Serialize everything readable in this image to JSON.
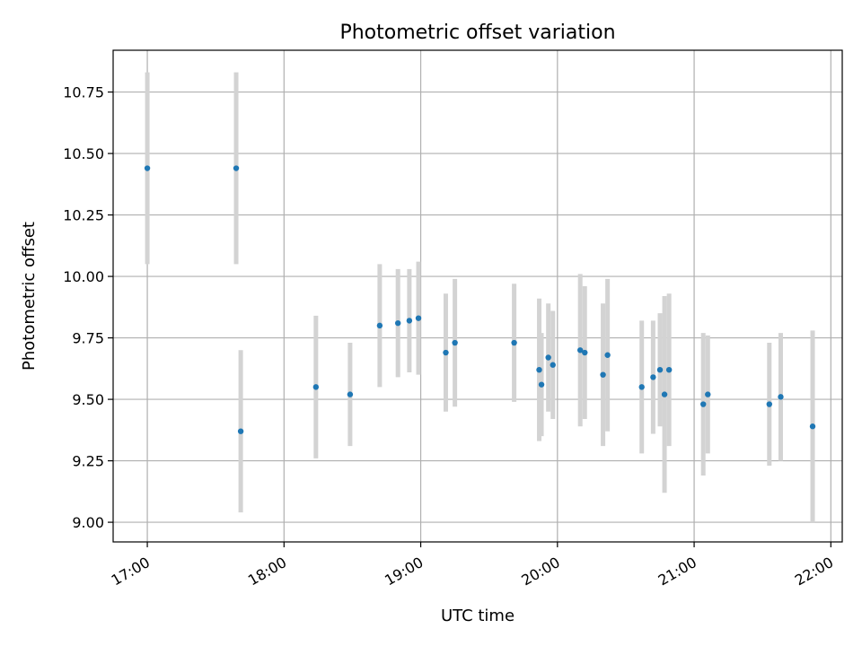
{
  "chart_data": {
    "type": "scatter",
    "title": "Photometric offset variation",
    "xlabel": "UTC time",
    "ylabel": "Photometric offset",
    "xlim": [
      "16:45",
      "22:05"
    ],
    "ylim": [
      8.92,
      10.92
    ],
    "x_ticks": [
      "17:00",
      "18:00",
      "19:00",
      "20:00",
      "21:00",
      "22:00"
    ],
    "y_ticks": [
      "9.00",
      "9.25",
      "9.50",
      "9.75",
      "10.00",
      "10.25",
      "10.50",
      "10.75"
    ],
    "grid": true,
    "point_color": "#1f77b4",
    "errorbar_color": "#d3d3d3",
    "points": [
      {
        "x": "17:00",
        "y": 10.44,
        "err": 0.39
      },
      {
        "x": "17:39",
        "y": 10.44,
        "err": 0.39
      },
      {
        "x": "17:41",
        "y": 9.37,
        "err": 0.33
      },
      {
        "x": "18:14",
        "y": 9.55,
        "err": 0.29
      },
      {
        "x": "18:29",
        "y": 9.52,
        "err": 0.21
      },
      {
        "x": "18:42",
        "y": 9.8,
        "err": 0.25
      },
      {
        "x": "18:50",
        "y": 9.81,
        "err": 0.22
      },
      {
        "x": "18:55",
        "y": 9.82,
        "err": 0.21
      },
      {
        "x": "18:59",
        "y": 9.83,
        "err": 0.23
      },
      {
        "x": "19:11",
        "y": 9.69,
        "err": 0.24
      },
      {
        "x": "19:15",
        "y": 9.73,
        "err": 0.26
      },
      {
        "x": "19:41",
        "y": 9.73,
        "err": 0.24
      },
      {
        "x": "19:52",
        "y": 9.62,
        "err": 0.29
      },
      {
        "x": "19:53",
        "y": 9.56,
        "err": 0.21
      },
      {
        "x": "19:56",
        "y": 9.67,
        "err": 0.22
      },
      {
        "x": "19:58",
        "y": 9.64,
        "err": 0.22
      },
      {
        "x": "20:10",
        "y": 9.7,
        "err": 0.31
      },
      {
        "x": "20:12",
        "y": 9.69,
        "err": 0.27
      },
      {
        "x": "20:20",
        "y": 9.6,
        "err": 0.29
      },
      {
        "x": "20:22",
        "y": 9.68,
        "err": 0.31
      },
      {
        "x": "20:37",
        "y": 9.55,
        "err": 0.27
      },
      {
        "x": "20:42",
        "y": 9.59,
        "err": 0.23
      },
      {
        "x": "20:45",
        "y": 9.62,
        "err": 0.23
      },
      {
        "x": "20:47",
        "y": 9.52,
        "err": 0.4
      },
      {
        "x": "20:49",
        "y": 9.62,
        "err": 0.31
      },
      {
        "x": "21:04",
        "y": 9.48,
        "err": 0.29
      },
      {
        "x": "21:06",
        "y": 9.52,
        "err": 0.24
      },
      {
        "x": "21:33",
        "y": 9.48,
        "err": 0.25
      },
      {
        "x": "21:38",
        "y": 9.51,
        "err": 0.26
      },
      {
        "x": "21:52",
        "y": 9.39,
        "err": 0.39
      }
    ]
  }
}
